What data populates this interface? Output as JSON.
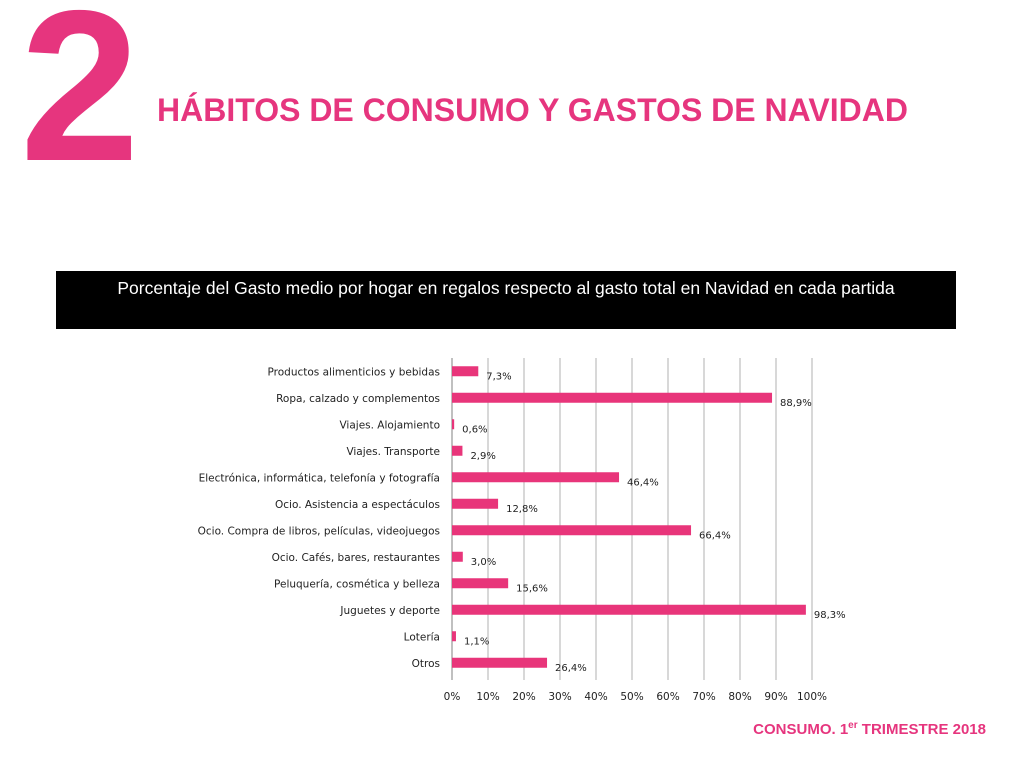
{
  "header": {
    "section_number": "2",
    "title": "HÁBITOS DE CONSUMO Y GASTOS DE NAVIDAD"
  },
  "banner": {
    "text": "Porcentaje del Gasto medio por hogar en regalos respecto al gasto total en Navidad en cada partida"
  },
  "footer": {
    "prefix": "CONSUMO. 1",
    "superscript": "er",
    "suffix": " TRIMESTRE 2018"
  },
  "colors": {
    "accent": "#e6357e",
    "banner_bg": "#000000",
    "bar": "#e8357a",
    "grid": "#b0b0b0"
  },
  "chart_data": {
    "type": "bar",
    "orientation": "horizontal",
    "categories": [
      "Productos alimenticios y bebidas",
      "Ropa, calzado y complementos",
      "Viajes. Alojamiento",
      "Viajes. Transporte",
      "Electrónica, informática, telefonía y fotografía",
      "Ocio. Asistencia a espectáculos",
      "Ocio. Compra de libros, películas, videojuegos",
      "Ocio. Cafés, bares, restaurantes",
      "Peluquería, cosmética y belleza",
      "Juguetes y deporte",
      "Lotería",
      "Otros"
    ],
    "values": [
      7.3,
      88.9,
      0.6,
      2.9,
      46.4,
      12.8,
      66.4,
      3.0,
      15.6,
      98.3,
      1.1,
      26.4
    ],
    "data_labels": [
      "7,3%",
      "88,9%",
      "0,6%",
      "2,9%",
      "46,4%",
      "12,8%",
      "66,4%",
      "3,0%",
      "15,6%",
      "98,3%",
      "1,1%",
      "26,4%"
    ],
    "xlim": [
      0,
      100
    ],
    "x_ticks": [
      0,
      10,
      20,
      30,
      40,
      50,
      60,
      70,
      80,
      90,
      100
    ],
    "x_tick_labels": [
      "0%",
      "10%",
      "20%",
      "30%",
      "40%",
      "50%",
      "60%",
      "70%",
      "80%",
      "90%",
      "100%"
    ],
    "grid": true,
    "legend": "none"
  }
}
